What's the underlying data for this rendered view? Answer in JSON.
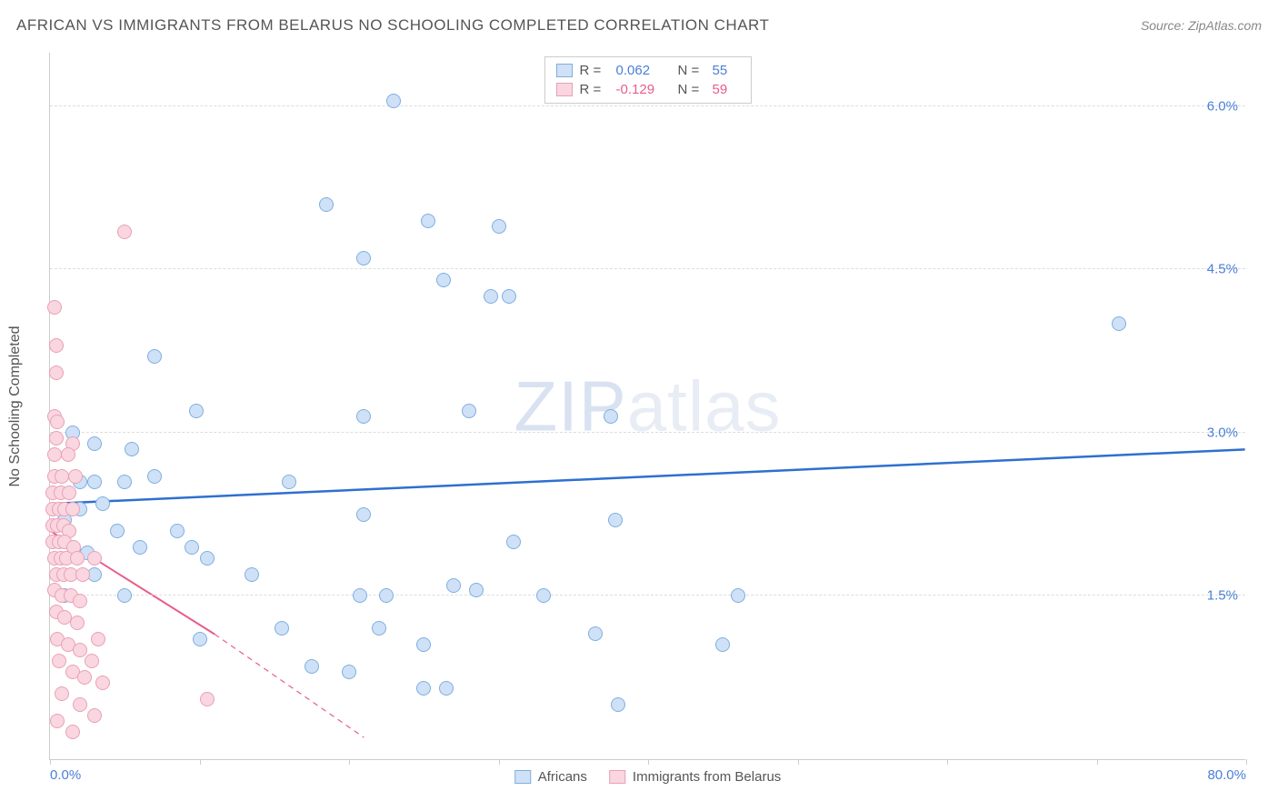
{
  "header": {
    "title": "AFRICAN VS IMMIGRANTS FROM BELARUS NO SCHOOLING COMPLETED CORRELATION CHART",
    "source_prefix": "Source: ",
    "source_name": "ZipAtlas.com"
  },
  "watermark": {
    "zip": "ZIP",
    "atlas": "atlas"
  },
  "chart": {
    "type": "scatter",
    "y_axis_label": "No Schooling Completed",
    "xlim": [
      0,
      80
    ],
    "ylim": [
      0,
      6.5
    ],
    "x_ticks": [
      0,
      10,
      20,
      30,
      40,
      50,
      60,
      70,
      80
    ],
    "x_tick_labels": {
      "0": "0.0%",
      "80": "80.0%"
    },
    "y_gridlines": [
      1.5,
      3.0,
      4.5,
      6.0
    ],
    "y_tick_labels": {
      "1.5": "1.5%",
      "3.0": "3.0%",
      "4.5": "4.5%",
      "6.0": "6.0%"
    },
    "marker_radius": 8,
    "background_color": "#ffffff",
    "grid_color": "#dddddd",
    "axis_color": "#cccccc",
    "label_color": "#4a7fd8",
    "series": [
      {
        "name": "Africans",
        "fill": "#cfe1f7",
        "stroke": "#7faee0",
        "trend_color": "#2f6fd0",
        "trend_width": 2.5,
        "trend": {
          "x1": 0,
          "y1": 2.35,
          "x2": 80,
          "y2": 2.85
        },
        "correlation": {
          "R_label": "R =",
          "R": "0.062",
          "N_label": "N =",
          "N": "55",
          "value_color": "#4a7fd8"
        },
        "points": [
          [
            23.0,
            6.05
          ],
          [
            18.5,
            5.1
          ],
          [
            25.3,
            4.95
          ],
          [
            21.0,
            4.6
          ],
          [
            26.3,
            4.4
          ],
          [
            29.5,
            4.25
          ],
          [
            30.7,
            4.25
          ],
          [
            7.0,
            3.7
          ],
          [
            71.5,
            4.0
          ],
          [
            37.5,
            3.15
          ],
          [
            9.8,
            3.2
          ],
          [
            21.0,
            3.15
          ],
          [
            28.0,
            3.2
          ],
          [
            1.5,
            3.0
          ],
          [
            3.0,
            2.9
          ],
          [
            5.5,
            2.85
          ],
          [
            2.0,
            2.55
          ],
          [
            3.0,
            2.55
          ],
          [
            5.0,
            2.55
          ],
          [
            7.0,
            2.6
          ],
          [
            2.0,
            2.3
          ],
          [
            3.5,
            2.35
          ],
          [
            1.0,
            2.2
          ],
          [
            4.5,
            2.1
          ],
          [
            37.8,
            2.2
          ],
          [
            16.0,
            2.55
          ],
          [
            21.0,
            2.25
          ],
          [
            31.0,
            2.0
          ],
          [
            9.5,
            1.95
          ],
          [
            10.5,
            1.85
          ],
          [
            13.5,
            1.7
          ],
          [
            5.0,
            1.5
          ],
          [
            27.0,
            1.6
          ],
          [
            28.5,
            1.55
          ],
          [
            33.0,
            1.5
          ],
          [
            46.0,
            1.5
          ],
          [
            36.5,
            1.15
          ],
          [
            15.5,
            1.2
          ],
          [
            17.5,
            0.85
          ],
          [
            20.0,
            0.8
          ],
          [
            25.0,
            1.05
          ],
          [
            26.5,
            0.65
          ],
          [
            25.0,
            0.65
          ],
          [
            20.7,
            1.5
          ],
          [
            22.5,
            1.5
          ],
          [
            22.0,
            1.2
          ],
          [
            45.0,
            1.05
          ],
          [
            38.0,
            0.5
          ],
          [
            10.0,
            1.1
          ],
          [
            2.5,
            1.9
          ],
          [
            3.0,
            1.7
          ],
          [
            1.0,
            1.5
          ],
          [
            8.5,
            2.1
          ],
          [
            30.0,
            4.9
          ],
          [
            6.0,
            1.95
          ]
        ]
      },
      {
        "name": "Immigrants from Belarus",
        "fill": "#f9d6e0",
        "stroke": "#eaa0b6",
        "trend_color": "#e75d8a",
        "trend_width": 2,
        "trend_solid": {
          "x1": 0,
          "y1": 2.1,
          "x2": 11,
          "y2": 1.15
        },
        "trend_dash": {
          "x1": 11,
          "y1": 1.15,
          "x2": 21,
          "y2": 0.2
        },
        "correlation": {
          "R_label": "R =",
          "R": "-0.129",
          "N_label": "N =",
          "N": "59",
          "value_color": "#e75d8a"
        },
        "points": [
          [
            5.0,
            4.85
          ],
          [
            0.3,
            4.15
          ],
          [
            0.4,
            3.8
          ],
          [
            0.4,
            3.55
          ],
          [
            0.3,
            3.15
          ],
          [
            0.5,
            3.1
          ],
          [
            0.4,
            2.95
          ],
          [
            1.5,
            2.9
          ],
          [
            0.3,
            2.8
          ],
          [
            1.2,
            2.8
          ],
          [
            0.3,
            2.6
          ],
          [
            0.8,
            2.6
          ],
          [
            1.7,
            2.6
          ],
          [
            0.2,
            2.45
          ],
          [
            0.7,
            2.45
          ],
          [
            1.3,
            2.45
          ],
          [
            0.2,
            2.3
          ],
          [
            0.6,
            2.3
          ],
          [
            1.0,
            2.3
          ],
          [
            1.5,
            2.3
          ],
          [
            0.2,
            2.15
          ],
          [
            0.5,
            2.15
          ],
          [
            0.9,
            2.15
          ],
          [
            1.3,
            2.1
          ],
          [
            0.2,
            2.0
          ],
          [
            0.6,
            2.0
          ],
          [
            1.0,
            2.0
          ],
          [
            1.6,
            1.95
          ],
          [
            0.3,
            1.85
          ],
          [
            0.7,
            1.85
          ],
          [
            1.1,
            1.85
          ],
          [
            1.8,
            1.85
          ],
          [
            3.0,
            1.85
          ],
          [
            0.4,
            1.7
          ],
          [
            0.9,
            1.7
          ],
          [
            1.4,
            1.7
          ],
          [
            2.2,
            1.7
          ],
          [
            0.3,
            1.55
          ],
          [
            0.8,
            1.5
          ],
          [
            1.4,
            1.5
          ],
          [
            2.0,
            1.45
          ],
          [
            0.4,
            1.35
          ],
          [
            1.0,
            1.3
          ],
          [
            1.8,
            1.25
          ],
          [
            3.2,
            1.1
          ],
          [
            0.5,
            1.1
          ],
          [
            1.2,
            1.05
          ],
          [
            2.0,
            1.0
          ],
          [
            2.8,
            0.9
          ],
          [
            0.6,
            0.9
          ],
          [
            1.5,
            0.8
          ],
          [
            2.3,
            0.75
          ],
          [
            3.5,
            0.7
          ],
          [
            0.8,
            0.6
          ],
          [
            2.0,
            0.5
          ],
          [
            3.0,
            0.4
          ],
          [
            10.5,
            0.55
          ],
          [
            0.5,
            0.35
          ],
          [
            1.5,
            0.25
          ]
        ]
      }
    ]
  },
  "legend_bottom": [
    {
      "label": "Africans",
      "fill": "#cfe1f7",
      "stroke": "#7faee0"
    },
    {
      "label": "Immigrants from Belarus",
      "fill": "#f9d6e0",
      "stroke": "#eaa0b6"
    }
  ]
}
